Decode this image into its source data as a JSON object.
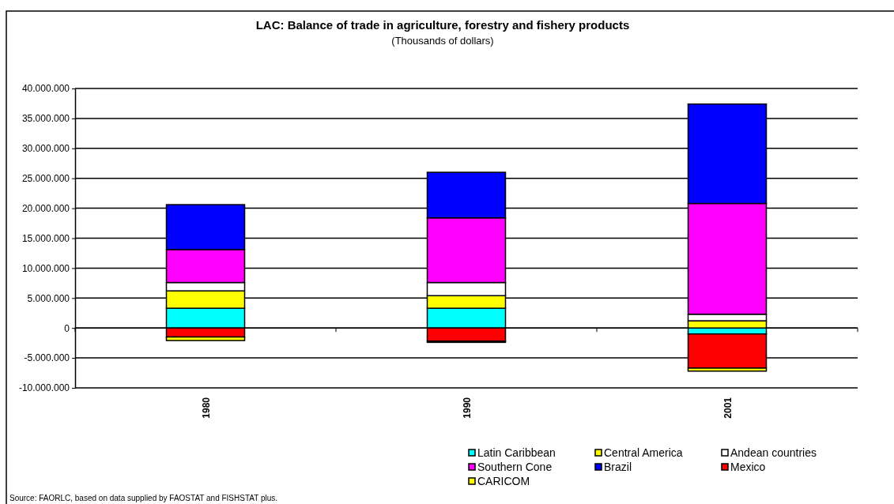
{
  "chart_data": {
    "type": "bar",
    "stacked": true,
    "title": "LAC: Balance of trade in agriculture, forestry and fishery products",
    "subtitle": "(Thousands of dollars)",
    "categories": [
      "1980",
      "1990",
      "2001"
    ],
    "series": [
      {
        "name": "Latin Caribbean",
        "color": "#00ffff",
        "values": [
          3300000,
          3300000,
          -1000000
        ]
      },
      {
        "name": "Central America",
        "color": "#ffff00",
        "values": [
          2900000,
          2100000,
          1200000
        ]
      },
      {
        "name": "Andean countries",
        "color": "#ffffff",
        "values": [
          1400000,
          2200000,
          1100000
        ]
      },
      {
        "name": "Southern Cone",
        "color": "#ff00ff",
        "values": [
          5500000,
          10800000,
          18500000
        ]
      },
      {
        "name": "Brazil",
        "color": "#0000ff",
        "values": [
          7500000,
          7600000,
          16600000
        ]
      },
      {
        "name": "Mexico",
        "color": "#ff0000",
        "values": [
          -1500000,
          -2200000,
          -5700000
        ]
      },
      {
        "name": "CARICOM",
        "color": "#ffff00",
        "values": [
          -600000,
          -200000,
          -500000
        ]
      }
    ],
    "ylim": [
      -10000000,
      40000000
    ],
    "yticks": [
      {
        "value": -10000000,
        "label": "-10.000.000"
      },
      {
        "value": -5000000,
        "label": "-5.000.000"
      },
      {
        "value": 0,
        "label": "0"
      },
      {
        "value": 5000000,
        "label": "5.000.000"
      },
      {
        "value": 10000000,
        "label": "10.000.000"
      },
      {
        "value": 15000000,
        "label": "15.000.000"
      },
      {
        "value": 20000000,
        "label": "20.000.000"
      },
      {
        "value": 25000000,
        "label": "25.000.000"
      },
      {
        "value": 30000000,
        "label": "30.000.000"
      },
      {
        "value": 35000000,
        "label": "35.000.000"
      },
      {
        "value": 40000000,
        "label": "40.000.000"
      }
    ],
    "grid": "y",
    "legend": "bottom",
    "annotations": [
      "Source: FAORLC, based on data supplied by FAOSTAT and FISHSTAT plus."
    ]
  }
}
